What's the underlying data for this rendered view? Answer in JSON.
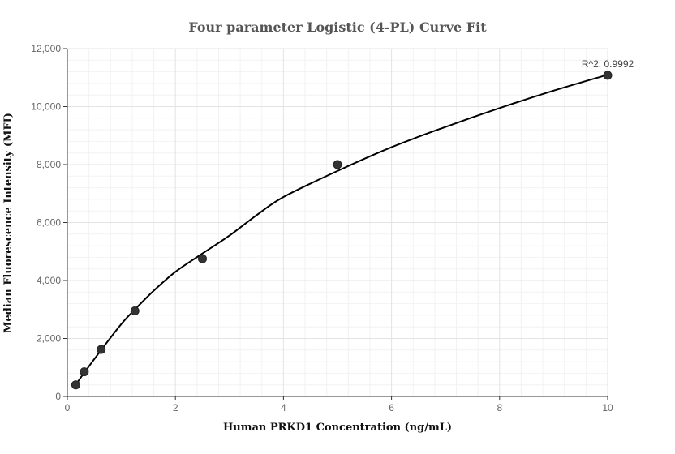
{
  "chart_data": {
    "type": "scatter",
    "title": "Four parameter Logistic (4-PL) Curve Fit",
    "xlabel": "Human PRKD1 Concentration (ng/mL)",
    "ylabel": "Median Fluorescence Intensity (MFI)",
    "xlim": [
      0,
      10
    ],
    "ylim": [
      0,
      12000
    ],
    "x_ticks": [
      0,
      2,
      4,
      6,
      8,
      10
    ],
    "x_tick_labels": [
      "0",
      "2",
      "4",
      "6",
      "8",
      "10"
    ],
    "y_ticks": [
      0,
      2000,
      4000,
      6000,
      8000,
      10000,
      12000
    ],
    "y_tick_labels": [
      "0",
      "2,000",
      "4,000",
      "6,000",
      "8,000",
      "10,000",
      "12,000"
    ],
    "grid": true,
    "annotation": "R^2: 0.9992",
    "series": [
      {
        "type": "scatter",
        "x": [
          0.156,
          0.313,
          0.625,
          1.25,
          2.5,
          5,
          10
        ],
        "y": [
          400,
          850,
          1620,
          2950,
          4750,
          8000,
          11080
        ]
      },
      {
        "type": "line",
        "x": [
          0.156,
          0.313,
          0.625,
          1.0,
          1.25,
          1.6,
          2.0,
          2.5,
          3.0,
          3.5,
          4.0,
          5.0,
          6.0,
          7.0,
          8.0,
          9.0,
          10.0
        ],
        "y": [
          400,
          820,
          1600,
          2500,
          3000,
          3650,
          4300,
          4930,
          5550,
          6250,
          6880,
          7780,
          8600,
          9300,
          9950,
          10550,
          11100
        ]
      }
    ],
    "colors": {
      "curve": "#000000",
      "points": "#333333"
    }
  }
}
